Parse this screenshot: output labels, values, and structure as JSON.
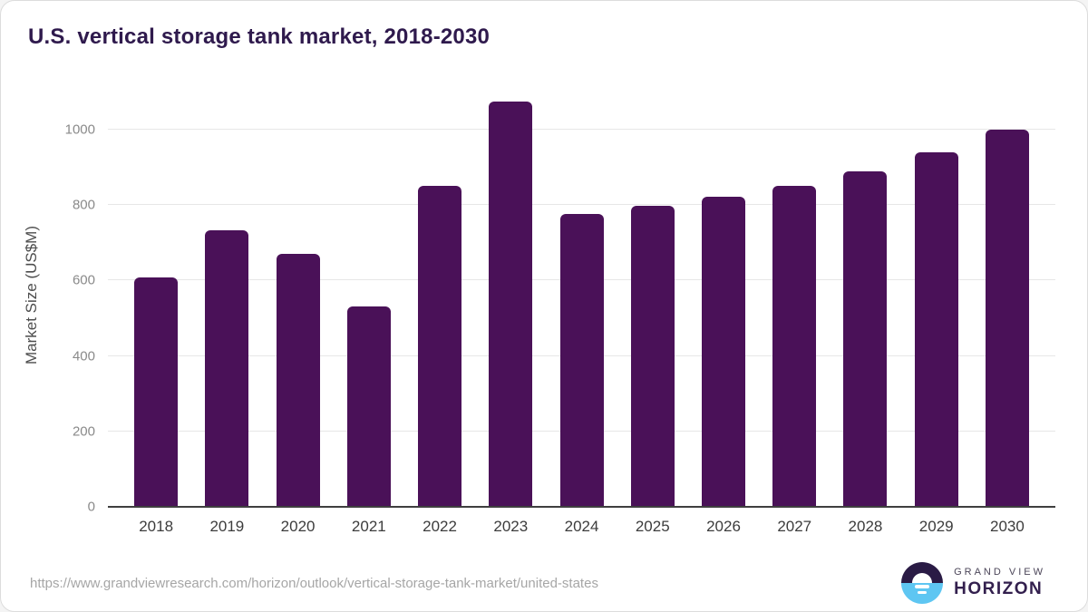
{
  "header": {
    "title": "U.S. vertical storage tank market, 2018-2030"
  },
  "chart_data": {
    "type": "bar",
    "title": "U.S. vertical storage tank market, 2018-2030",
    "categories": [
      "2018",
      "2019",
      "2020",
      "2021",
      "2022",
      "2023",
      "2024",
      "2025",
      "2026",
      "2027",
      "2028",
      "2029",
      "2030"
    ],
    "values": [
      607,
      733,
      670,
      532,
      852,
      1075,
      777,
      797,
      822,
      851,
      889,
      940,
      1000
    ],
    "xlabel": "",
    "ylabel": "Market Size (US$M)",
    "ylim": [
      0,
      1120
    ],
    "yticks": [
      0,
      200,
      400,
      600,
      800,
      1000
    ],
    "grid": "horizontal",
    "legend": "none",
    "bar_color": "#4a1158"
  },
  "footer": {
    "source_url": "https://www.grandviewresearch.com/horizon/outlook/vertical-storage-tank-market/united-states",
    "logo": {
      "line1": "GRAND VIEW",
      "line2": "HORIZON"
    }
  },
  "colors": {
    "title": "#2f1a4d",
    "bar": "#4a1158",
    "gridline": "#e7e7e7",
    "axis_line": "#3f3f3f",
    "ytick_label": "#8a8a8a",
    "xtick_label": "#3c3c3c",
    "url_text": "#a6a6a6",
    "logo_dark": "#2a1b45",
    "logo_blue": "#5ec6f2"
  }
}
